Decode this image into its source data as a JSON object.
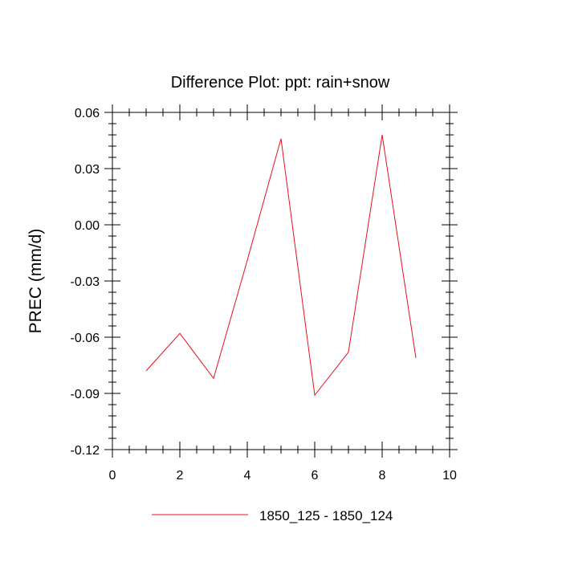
{
  "chart_data": {
    "type": "line",
    "title": "Difference Plot: ppt: rain+snow",
    "xlabel": "",
    "ylabel": "PREC  (mm/d)",
    "xlim": [
      0,
      10
    ],
    "ylim": [
      -0.12,
      0.06
    ],
    "x_ticks": [
      0,
      2,
      4,
      6,
      8,
      10
    ],
    "x_tick_labels": [
      "0",
      "2",
      "4",
      "6",
      "8",
      "10"
    ],
    "y_ticks": [
      -0.12,
      -0.09,
      -0.06,
      -0.03,
      0.0,
      0.03,
      0.06
    ],
    "y_tick_labels": [
      "-0.12",
      "-0.09",
      "-0.06",
      "-0.03",
      "0.00",
      "0.03",
      "0.06"
    ],
    "grid": false,
    "legend_position": "bottom",
    "series": [
      {
        "name": "1850_125 - 1850_124",
        "color": "#e8101a",
        "x": [
          1,
          2,
          3,
          4,
          5,
          6,
          7,
          8,
          9
        ],
        "y": [
          -0.078,
          -0.058,
          -0.082,
          -0.019,
          0.046,
          -0.091,
          -0.068,
          0.048,
          -0.071
        ]
      }
    ]
  }
}
